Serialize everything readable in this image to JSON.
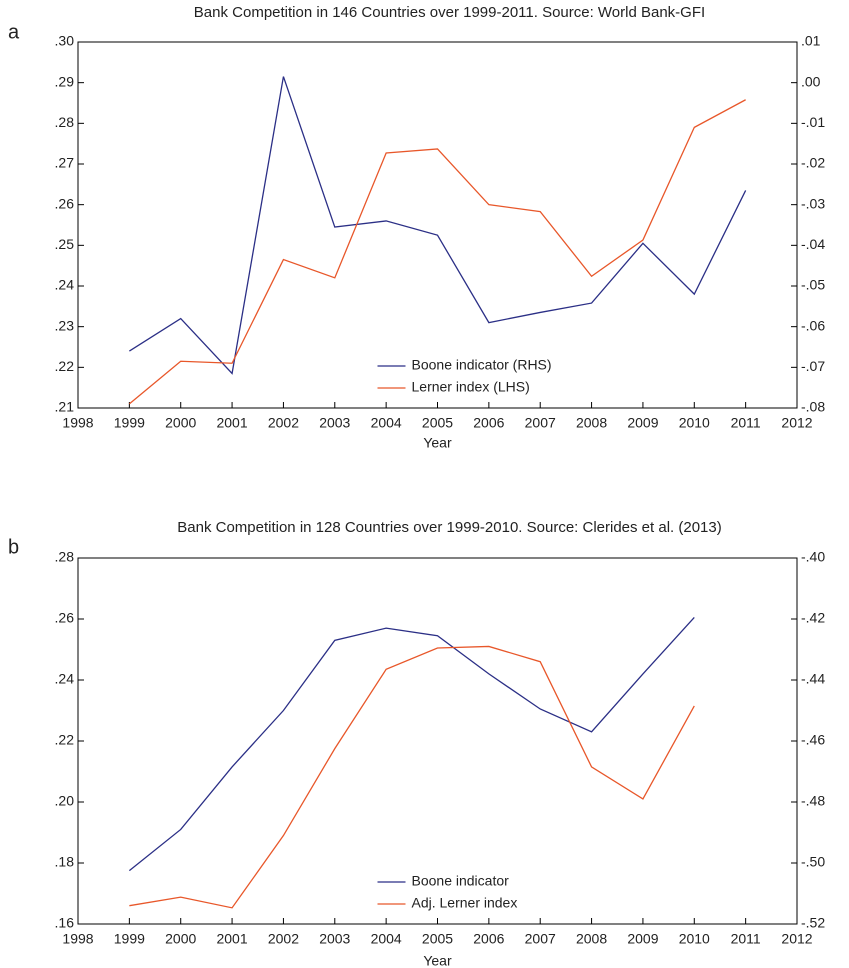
{
  "chart_data": [
    {
      "type": "line",
      "panel_label": "a",
      "title": "Bank Competition in 146 Countries over 1999-2011. Source: World Bank-GFI",
      "x_label": "Year",
      "x": [
        1999,
        2000,
        2001,
        2002,
        2003,
        2004,
        2005,
        2006,
        2007,
        2008,
        2009,
        2010,
        2011
      ],
      "xlim": [
        1998,
        2012
      ],
      "xticks": [
        1998,
        1999,
        2000,
        2001,
        2002,
        2003,
        2004,
        2005,
        2006,
        2007,
        2008,
        2009,
        2010,
        2011,
        2012
      ],
      "ylim": [
        0.21,
        0.3
      ],
      "yticks": [
        {
          "value": 0.21,
          "label": ".21"
        },
        {
          "value": 0.22,
          "label": ".22"
        },
        {
          "value": 0.23,
          "label": ".23"
        },
        {
          "value": 0.24,
          "label": ".24"
        },
        {
          "value": 0.25,
          "label": ".25"
        },
        {
          "value": 0.26,
          "label": ".26"
        },
        {
          "value": 0.27,
          "label": ".27"
        },
        {
          "value": 0.28,
          "label": ".28"
        },
        {
          "value": 0.29,
          "label": ".29"
        },
        {
          "value": 0.3,
          "label": ".30"
        }
      ],
      "y2lim": [
        -0.08,
        0.01
      ],
      "y2ticks": [
        {
          "value": -0.08,
          "label": "-.08"
        },
        {
          "value": -0.07,
          "label": "-.07"
        },
        {
          "value": -0.06,
          "label": "-.06"
        },
        {
          "value": -0.05,
          "label": "-.05"
        },
        {
          "value": -0.04,
          "label": "-.04"
        },
        {
          "value": -0.03,
          "label": "-.03"
        },
        {
          "value": -0.02,
          "label": "-.02"
        },
        {
          "value": -0.01,
          "label": "-.01"
        },
        {
          "value": 0,
          "label": ".00"
        },
        {
          "value": 0.01,
          "label": ".01"
        }
      ],
      "legend": "lower center",
      "series": [
        {
          "name": "Boone indicator (RHS)",
          "color": "#2b2f86",
          "axis": "y2",
          "values": [
            -0.066,
            -0.058,
            -0.0715,
            0.0015,
            -0.0355,
            -0.034,
            -0.0375,
            -0.059,
            -0.0565,
            -0.0542,
            -0.0395,
            -0.052,
            -0.0265
          ]
        },
        {
          "name": "Lerner index (LHS)",
          "color": "#e8572a",
          "values": [
            0.211,
            0.2215,
            0.221,
            0.2465,
            0.242,
            0.2727,
            0.2737,
            0.26,
            0.2583,
            0.2424,
            0.2513,
            0.279,
            0.2858
          ]
        }
      ]
    },
    {
      "type": "line",
      "panel_label": "b",
      "title": "Bank Competition in 128 Countries over 1999-2010. Source: Clerides et al. (2013)",
      "x_label": "Year",
      "x": [
        1999,
        2000,
        2001,
        2002,
        2003,
        2004,
        2005,
        2006,
        2007,
        2008,
        2009,
        2010
      ],
      "xlim": [
        1998,
        2012
      ],
      "xticks": [
        1998,
        1999,
        2000,
        2001,
        2002,
        2003,
        2004,
        2005,
        2006,
        2007,
        2008,
        2009,
        2010,
        2011,
        2012
      ],
      "ylim": [
        0.16,
        0.28
      ],
      "yticks": [
        {
          "value": 0.16,
          "label": ".16"
        },
        {
          "value": 0.18,
          "label": ".18"
        },
        {
          "value": 0.2,
          "label": ".20"
        },
        {
          "value": 0.22,
          "label": ".22"
        },
        {
          "value": 0.24,
          "label": ".24"
        },
        {
          "value": 0.26,
          "label": ".26"
        },
        {
          "value": 0.28,
          "label": ".28"
        }
      ],
      "y2lim": [
        -0.52,
        -0.4
      ],
      "y2ticks": [
        {
          "value": -0.52,
          "label": "-.52"
        },
        {
          "value": -0.5,
          "label": "-.50"
        },
        {
          "value": -0.48,
          "label": "-.48"
        },
        {
          "value": -0.46,
          "label": "-.46"
        },
        {
          "value": -0.44,
          "label": "-.44"
        },
        {
          "value": -0.42,
          "label": "-.42"
        },
        {
          "value": -0.4,
          "label": "-.40"
        }
      ],
      "legend": "lower center",
      "series": [
        {
          "name": "Boone indicator",
          "color": "#2b2f86",
          "axis": "y2",
          "values": [
            -0.5025,
            -0.489,
            -0.4685,
            -0.45,
            -0.427,
            -0.423,
            -0.4255,
            -0.438,
            -0.4495,
            -0.457,
            -0.438,
            -0.4195
          ]
        },
        {
          "name": "Adj. Lerner index",
          "color": "#e8572a",
          "values": [
            0.166,
            0.1688,
            0.1653,
            0.189,
            0.2175,
            0.2435,
            0.2505,
            0.251,
            0.246,
            0.2115,
            0.201,
            0.2315
          ]
        }
      ]
    }
  ]
}
